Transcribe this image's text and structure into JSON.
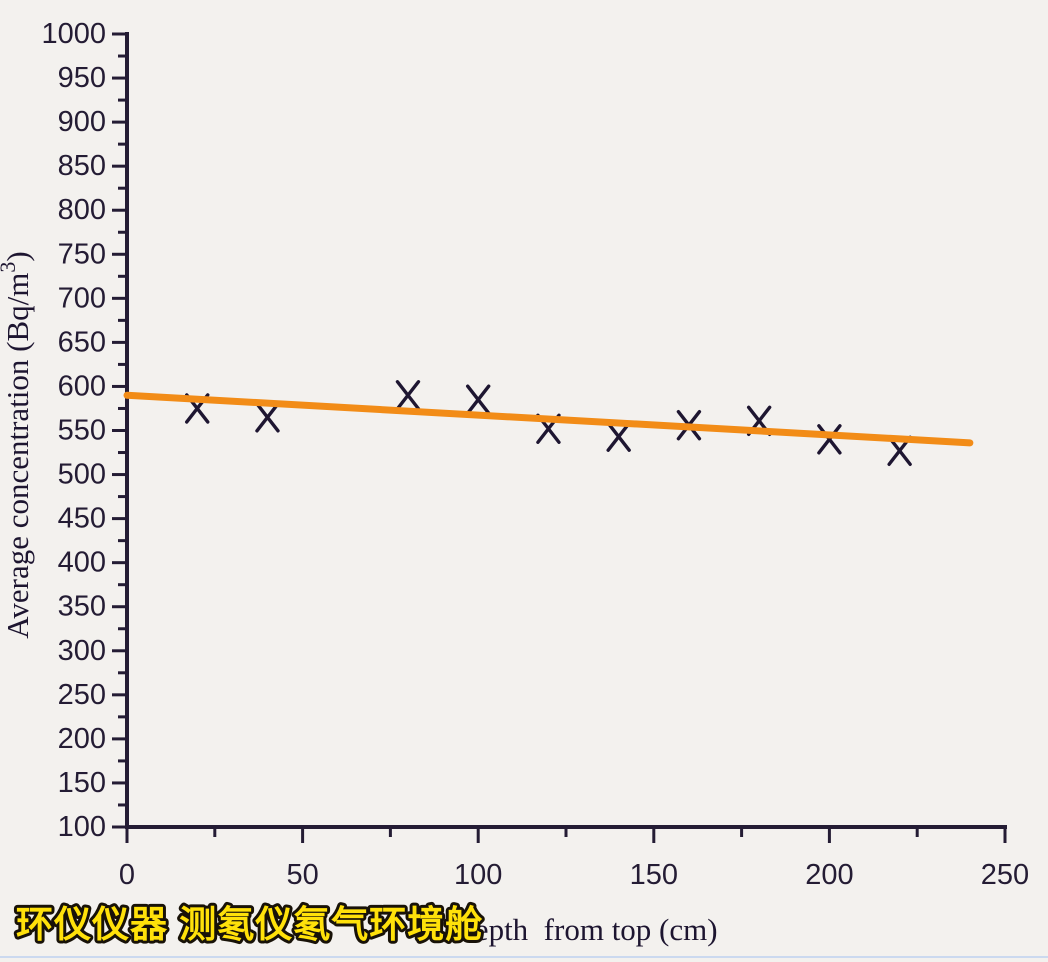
{
  "page": {
    "background": "#f3f1ee",
    "bottom_artifact_color": "#bdd0ef"
  },
  "watermark": {
    "text": "环仪仪器 测氡仪氡气环境舱",
    "fill": "#ffe10a",
    "stroke": "#181208"
  },
  "chart_data": {
    "type": "scatter",
    "title": "",
    "xlabel": "Depth  from top (cm)",
    "ylabel": "Average concentration (Bq/m³)",
    "ylabel_parts": {
      "prefix": "Average concentration (Bq/m",
      "sup": "3",
      "suffix": ")"
    },
    "xlim": [
      0,
      250
    ],
    "ylim": [
      100,
      1000
    ],
    "x_major_step": 50,
    "x_minor_step": 25,
    "y_major_step": 50,
    "y_minor_step": 25,
    "grid": false,
    "legend": null,
    "axis_color": "#241c34",
    "marker": "x",
    "marker_color": "#1e1631",
    "x": [
      20,
      40,
      80,
      100,
      120,
      140,
      160,
      180,
      200,
      220
    ],
    "y": [
      575,
      565,
      590,
      585,
      552,
      543,
      556,
      561,
      540,
      527
    ],
    "trend_line": {
      "from_x": 0,
      "from_y": 590,
      "to_x": 240,
      "to_y": 536,
      "color": "#f28c17",
      "width": 7
    }
  }
}
